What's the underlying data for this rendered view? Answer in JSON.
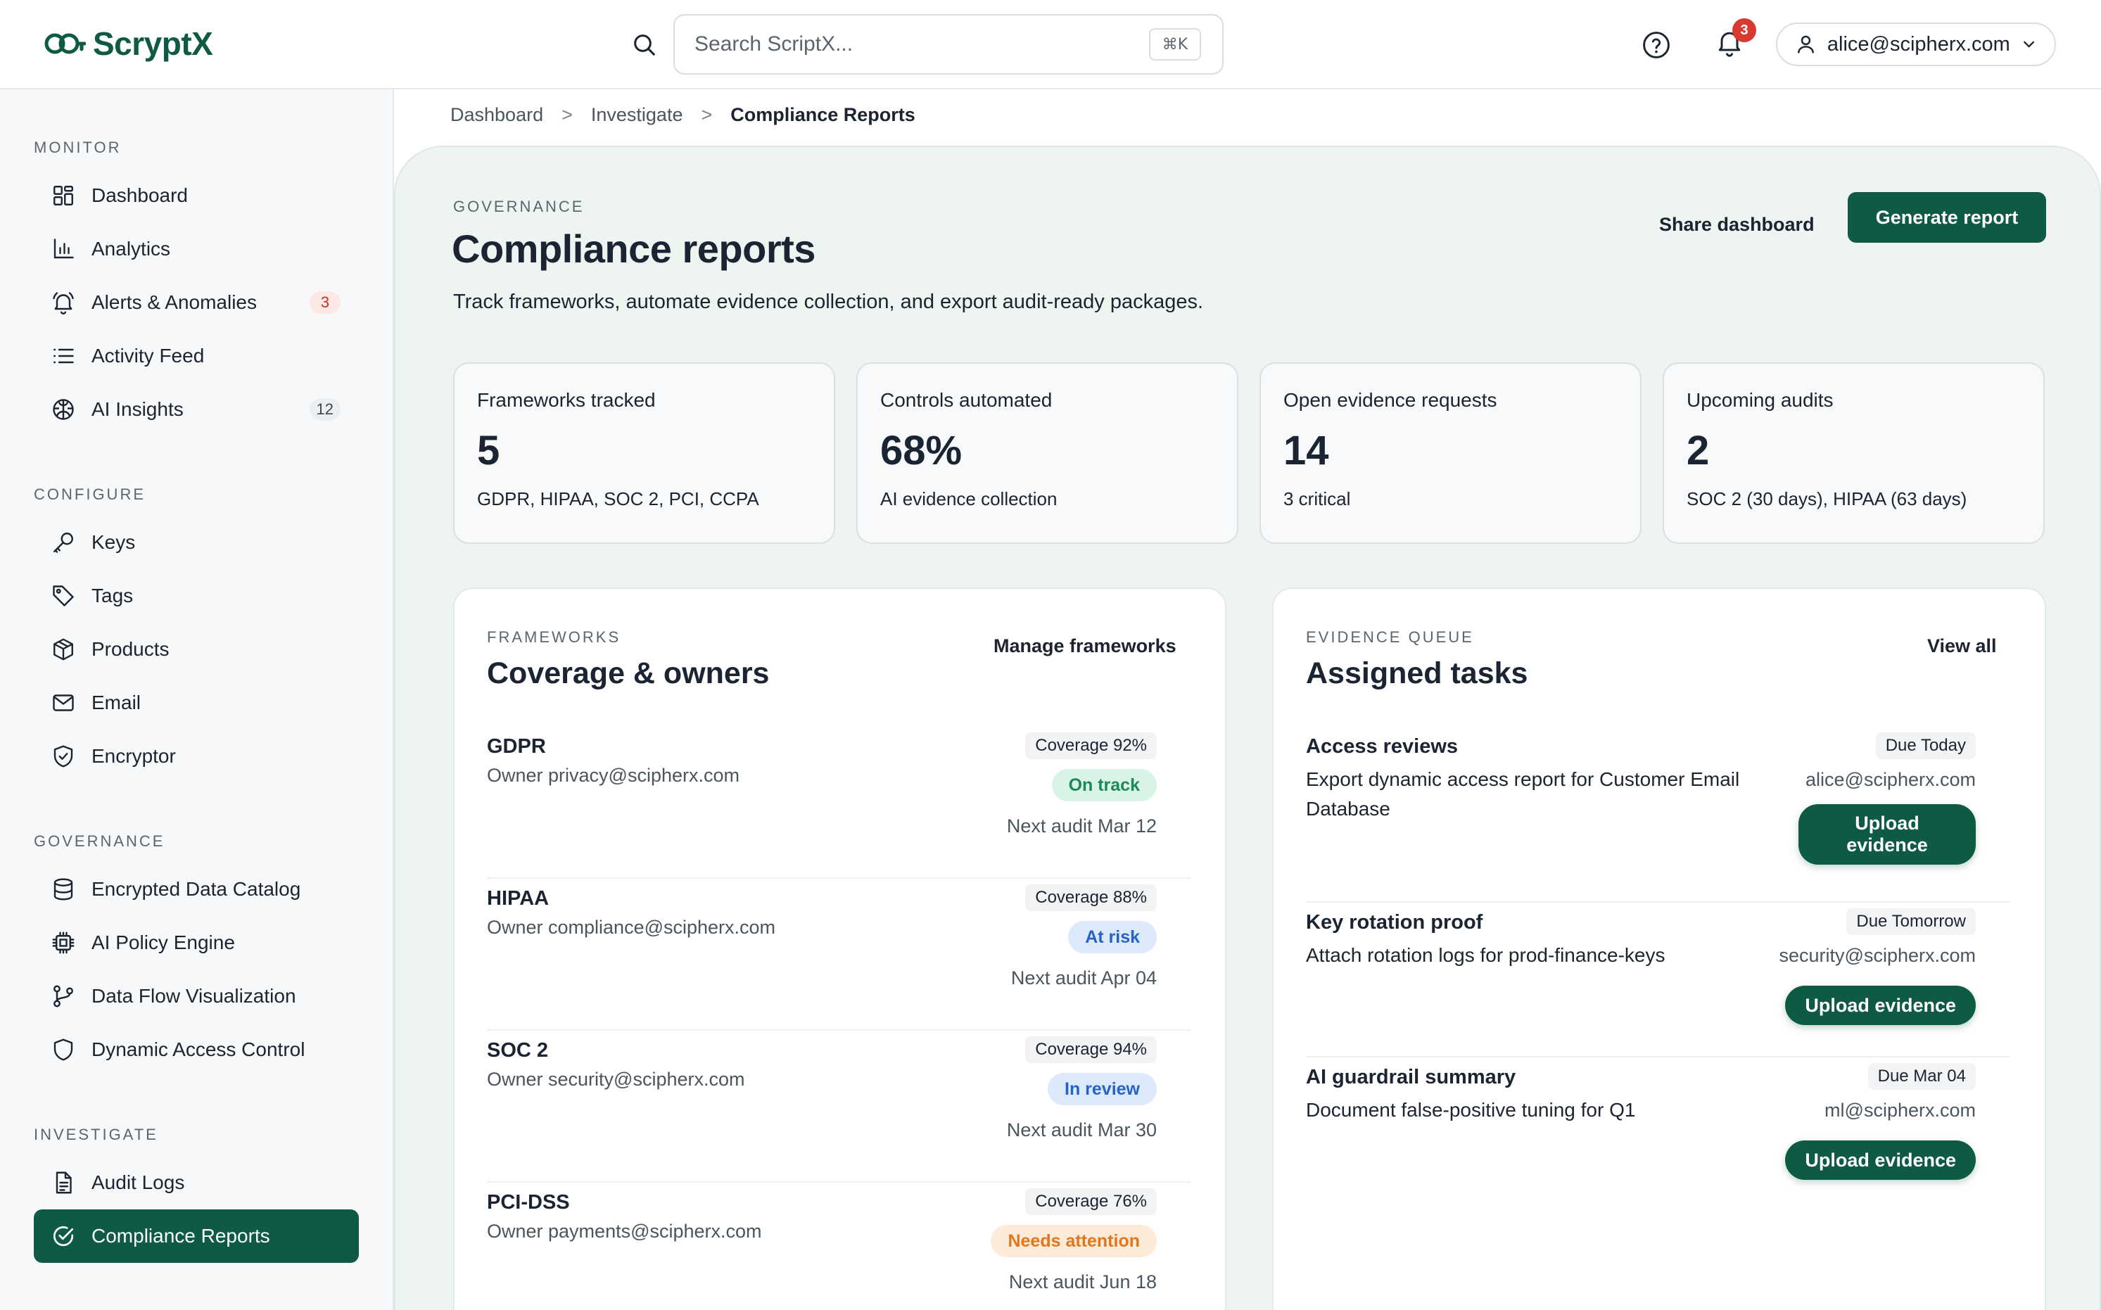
{
  "app": {
    "name": "ScryptX"
  },
  "colors": {
    "brand": "#0e5a45",
    "background_main": "#eef5f1",
    "alert": "#d83a2f"
  },
  "header": {
    "search": {
      "placeholder": "Search ScriptX...",
      "shortcut": "⌘K"
    },
    "notifications_count": "3",
    "user_email": "alice@scipherx.com",
    "icons": [
      "search-icon",
      "help-icon",
      "bell-icon",
      "user-icon",
      "chevron-down-icon"
    ]
  },
  "sidebar": {
    "sections": [
      {
        "title": "MONITOR",
        "items": [
          {
            "label": "Dashboard",
            "icon": "grid-icon"
          },
          {
            "label": "Analytics",
            "icon": "bar-chart-icon"
          },
          {
            "label": "Alerts & Anomalies",
            "icon": "bell-icon",
            "count": "3"
          },
          {
            "label": "Activity Feed",
            "icon": "list-icon"
          },
          {
            "label": "AI Insights",
            "icon": "brain-icon",
            "count": "12"
          }
        ]
      },
      {
        "title": "CONFIGURE",
        "items": [
          {
            "label": "Keys",
            "icon": "key-icon"
          },
          {
            "label": "Tags",
            "icon": "tag-icon"
          },
          {
            "label": "Products",
            "icon": "box-icon"
          },
          {
            "label": "Email",
            "icon": "mail-icon"
          },
          {
            "label": "Encryptor",
            "icon": "shield-check-icon"
          }
        ]
      },
      {
        "title": "GOVERNANCE",
        "items": [
          {
            "label": "Encrypted Data Catalog",
            "icon": "database-icon"
          },
          {
            "label": "AI Policy Engine",
            "icon": "chip-icon"
          },
          {
            "label": "Data Flow Visualization",
            "icon": "flow-icon"
          },
          {
            "label": "Dynamic Access Control",
            "icon": "shield-icon"
          }
        ]
      },
      {
        "title": "INVESTIGATE",
        "items": [
          {
            "label": "Audit Logs",
            "icon": "file-icon"
          },
          {
            "label": "Compliance Reports",
            "icon": "check-circle-icon",
            "active": true
          }
        ]
      }
    ]
  },
  "breadcrumb": [
    "Dashboard",
    "Investigate",
    "Compliance Reports"
  ],
  "breadcrumb_separator": ">",
  "page": {
    "eyebrow": "GOVERNANCE",
    "title": "Compliance reports",
    "subtitle": "Track frameworks, automate evidence collection, and export audit-ready packages.",
    "share_label": "Share dashboard",
    "generate_label": "Generate report"
  },
  "stats": [
    {
      "label": "Frameworks tracked",
      "value": "5",
      "note": "GDPR, HIPAA, SOC 2, PCI, CCPA"
    },
    {
      "label": "Controls automated",
      "value": "68%",
      "note": "AI evidence collection"
    },
    {
      "label": "Open evidence requests",
      "value": "14",
      "note": "3 critical"
    },
    {
      "label": "Upcoming audits",
      "value": "2",
      "note": "SOC 2 (30 days), HIPAA (63 days)"
    }
  ],
  "frameworks_card": {
    "eyebrow": "FRAMEWORKS",
    "title": "Coverage & owners",
    "action": "Manage frameworks",
    "rows": [
      {
        "name": "GDPR",
        "owner": "Owner privacy@scipherx.com",
        "coverage": "Coverage 92%",
        "status": "On track",
        "audit": "Next audit Mar 12"
      },
      {
        "name": "HIPAA",
        "owner": "Owner compliance@scipherx.com",
        "coverage": "Coverage 88%",
        "status": "At risk",
        "audit": "Next audit Apr 04"
      },
      {
        "name": "SOC 2",
        "owner": "Owner security@scipherx.com",
        "coverage": "Coverage 94%",
        "status": "In review",
        "audit": "Next audit Mar 30"
      },
      {
        "name": "PCI-DSS",
        "owner": "Owner payments@scipherx.com",
        "coverage": "Coverage 76%",
        "status": "Needs attention",
        "audit": "Next audit Jun 18"
      }
    ]
  },
  "tasks_card": {
    "eyebrow": "EVIDENCE QUEUE",
    "title": "Assigned tasks",
    "action": "View all",
    "rows": [
      {
        "title": "Access reviews",
        "desc": "Export dynamic access report for Customer Email Database",
        "due": "Due Today",
        "owner": "alice@scipherx.com",
        "button": "Upload evidence"
      },
      {
        "title": "Key rotation proof",
        "desc": "Attach rotation logs for prod-finance-keys",
        "due": "Due Tomorrow",
        "owner": "security@scipherx.com",
        "button": "Upload evidence"
      },
      {
        "title": "AI guardrail summary",
        "desc": "Document false-positive tuning for Q1",
        "due": "Due Mar 04",
        "owner": "ml@scipherx.com",
        "button": "Upload evidence"
      }
    ]
  }
}
